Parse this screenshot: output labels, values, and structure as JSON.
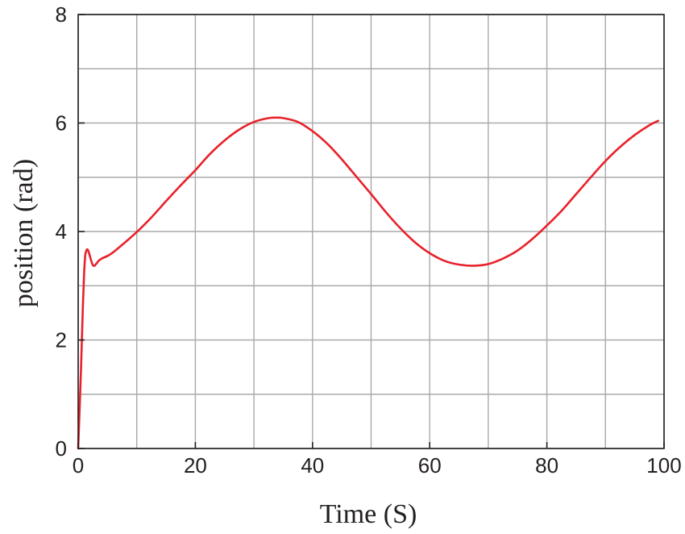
{
  "chart_data": {
    "type": "line",
    "title": "",
    "xlabel": "Time (S)",
    "ylabel": "position (rad)",
    "xlim": [
      0,
      100
    ],
    "ylim": [
      0,
      8
    ],
    "x_ticks": [
      0,
      20,
      40,
      60,
      80,
      100
    ],
    "y_ticks": [
      0,
      2,
      4,
      6,
      8
    ],
    "x_grid": [
      0,
      10,
      20,
      30,
      40,
      50,
      60,
      70,
      80,
      90,
      100
    ],
    "y_grid": [
      0,
      1,
      2,
      3,
      4,
      5,
      6,
      7,
      8
    ],
    "grid": true,
    "legend": "none",
    "series": [
      {
        "color": "#e8212a",
        "x": [
          0,
          0.5,
          0.8,
          1.0,
          1.2,
          1.4,
          1.6,
          1.8,
          2.0,
          2.2,
          2.5,
          2.8,
          3.2,
          3.5,
          4.0,
          5.0,
          6.0,
          8.0,
          10.0,
          12.5,
          15.0,
          17.5,
          20.0,
          22.5,
          25.0,
          27.5,
          30.0,
          32.5,
          34.0,
          35.0,
          37.5,
          40.0,
          42.5,
          45.0,
          47.5,
          50.0,
          52.5,
          55.0,
          57.5,
          60.0,
          62.5,
          65.0,
          67.5,
          70.0,
          72.5,
          75.0,
          77.5,
          80.0,
          82.5,
          85.0,
          87.5,
          90.0,
          92.5,
          95.0,
          97.5,
          99.0
        ],
        "y": [
          0,
          1.5,
          2.6,
          3.2,
          3.55,
          3.65,
          3.67,
          3.62,
          3.55,
          3.47,
          3.38,
          3.37,
          3.42,
          3.46,
          3.5,
          3.55,
          3.62,
          3.8,
          3.99,
          4.26,
          4.56,
          4.85,
          5.13,
          5.43,
          5.68,
          5.88,
          6.02,
          6.09,
          6.1,
          6.09,
          6.02,
          5.85,
          5.62,
          5.33,
          5.01,
          4.69,
          4.36,
          4.06,
          3.8,
          3.6,
          3.46,
          3.39,
          3.37,
          3.4,
          3.5,
          3.65,
          3.86,
          4.11,
          4.38,
          4.69,
          5.0,
          5.3,
          5.56,
          5.78,
          5.96,
          6.04
        ]
      }
    ]
  }
}
